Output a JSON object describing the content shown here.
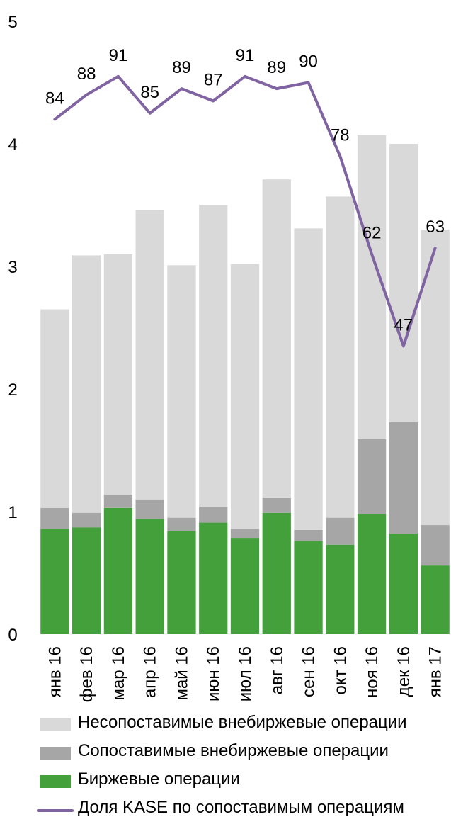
{
  "chart_data": {
    "type": "bar",
    "stacked": true,
    "categories": [
      "янв 16",
      "фев 16",
      "мар 16",
      "апр 16",
      "май 16",
      "июн 16",
      "июл 16",
      "авг 16",
      "сен 16",
      "окт 16",
      "ноя 16",
      "дек 16",
      "янв 17"
    ],
    "ylim": [
      0,
      5
    ],
    "yticks": [
      "0",
      "1",
      "2",
      "3",
      "4",
      "5"
    ],
    "series": [
      {
        "name": "Биржевые операции",
        "color": "#43a03b",
        "values": [
          0.86,
          0.87,
          1.03,
          0.94,
          0.84,
          0.91,
          0.78,
          0.99,
          0.76,
          0.73,
          0.98,
          0.82,
          0.56
        ]
      },
      {
        "name": "Сопоставимые внебиржевые операции",
        "color": "#a6a6a6",
        "values": [
          0.17,
          0.12,
          0.11,
          0.16,
          0.11,
          0.13,
          0.08,
          0.12,
          0.09,
          0.22,
          0.61,
          0.91,
          0.33
        ]
      },
      {
        "name": "Несопоставимые внебиржевые операции",
        "color": "#d9d9d9",
        "values": [
          1.62,
          2.1,
          1.96,
          2.36,
          2.06,
          2.46,
          2.16,
          2.6,
          2.46,
          2.62,
          2.48,
          2.27,
          2.41
        ]
      }
    ],
    "line": {
      "name": "Доля KASE по сопоставимым операциям",
      "color": "#8064a2",
      "values": [
        84,
        88,
        91,
        85,
        89,
        87,
        91,
        89,
        90,
        78,
        62,
        47,
        63
      ],
      "labels": [
        "84",
        "88",
        "91",
        "85",
        "89",
        "87",
        "91",
        "89",
        "90",
        "78",
        "62",
        "47",
        "63"
      ]
    },
    "legend": {
      "placement": "bottom",
      "items": [
        {
          "label": "Несопоставимые внебиржевые операции",
          "color": "#d9d9d9",
          "kind": "bar"
        },
        {
          "label": "Сопоставимые внебиржевые операции",
          "color": "#a6a6a6",
          "kind": "bar"
        },
        {
          "label": "Биржевые операции",
          "color": "#43a03b",
          "kind": "bar"
        },
        {
          "label": "Доля KASE по сопоставимым операциям",
          "color": "#8064a2",
          "kind": "line"
        }
      ]
    },
    "grid": false
  }
}
